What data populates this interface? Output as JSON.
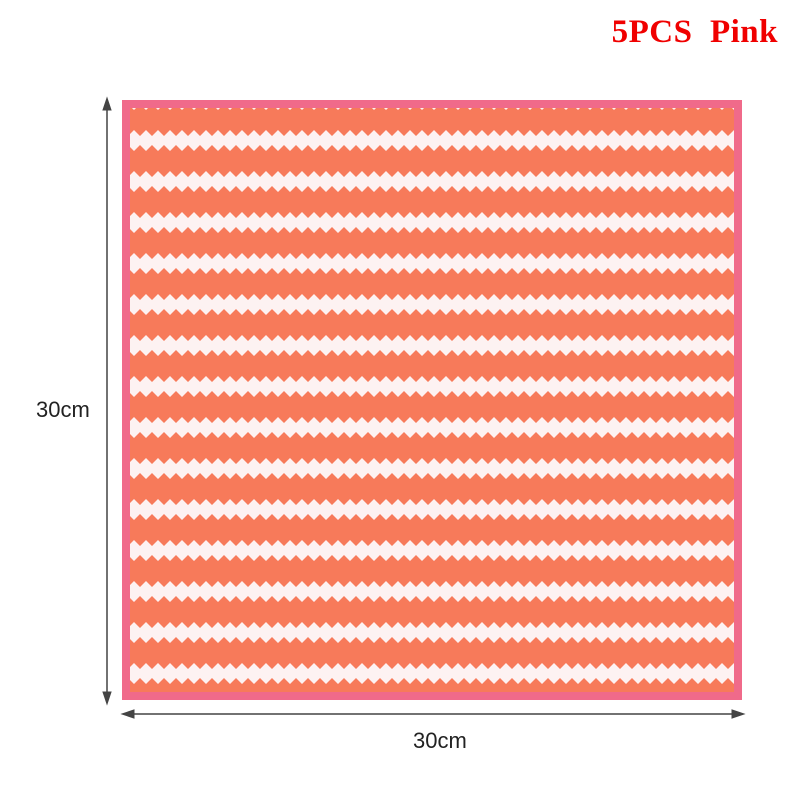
{
  "title": "5PCS  Pink",
  "height_label": "30cm",
  "width_label": "30cm",
  "colors": {
    "title": "#f00000",
    "stripe": "#f77a5a",
    "border": "#f06a8a",
    "background": "#ffffff"
  }
}
